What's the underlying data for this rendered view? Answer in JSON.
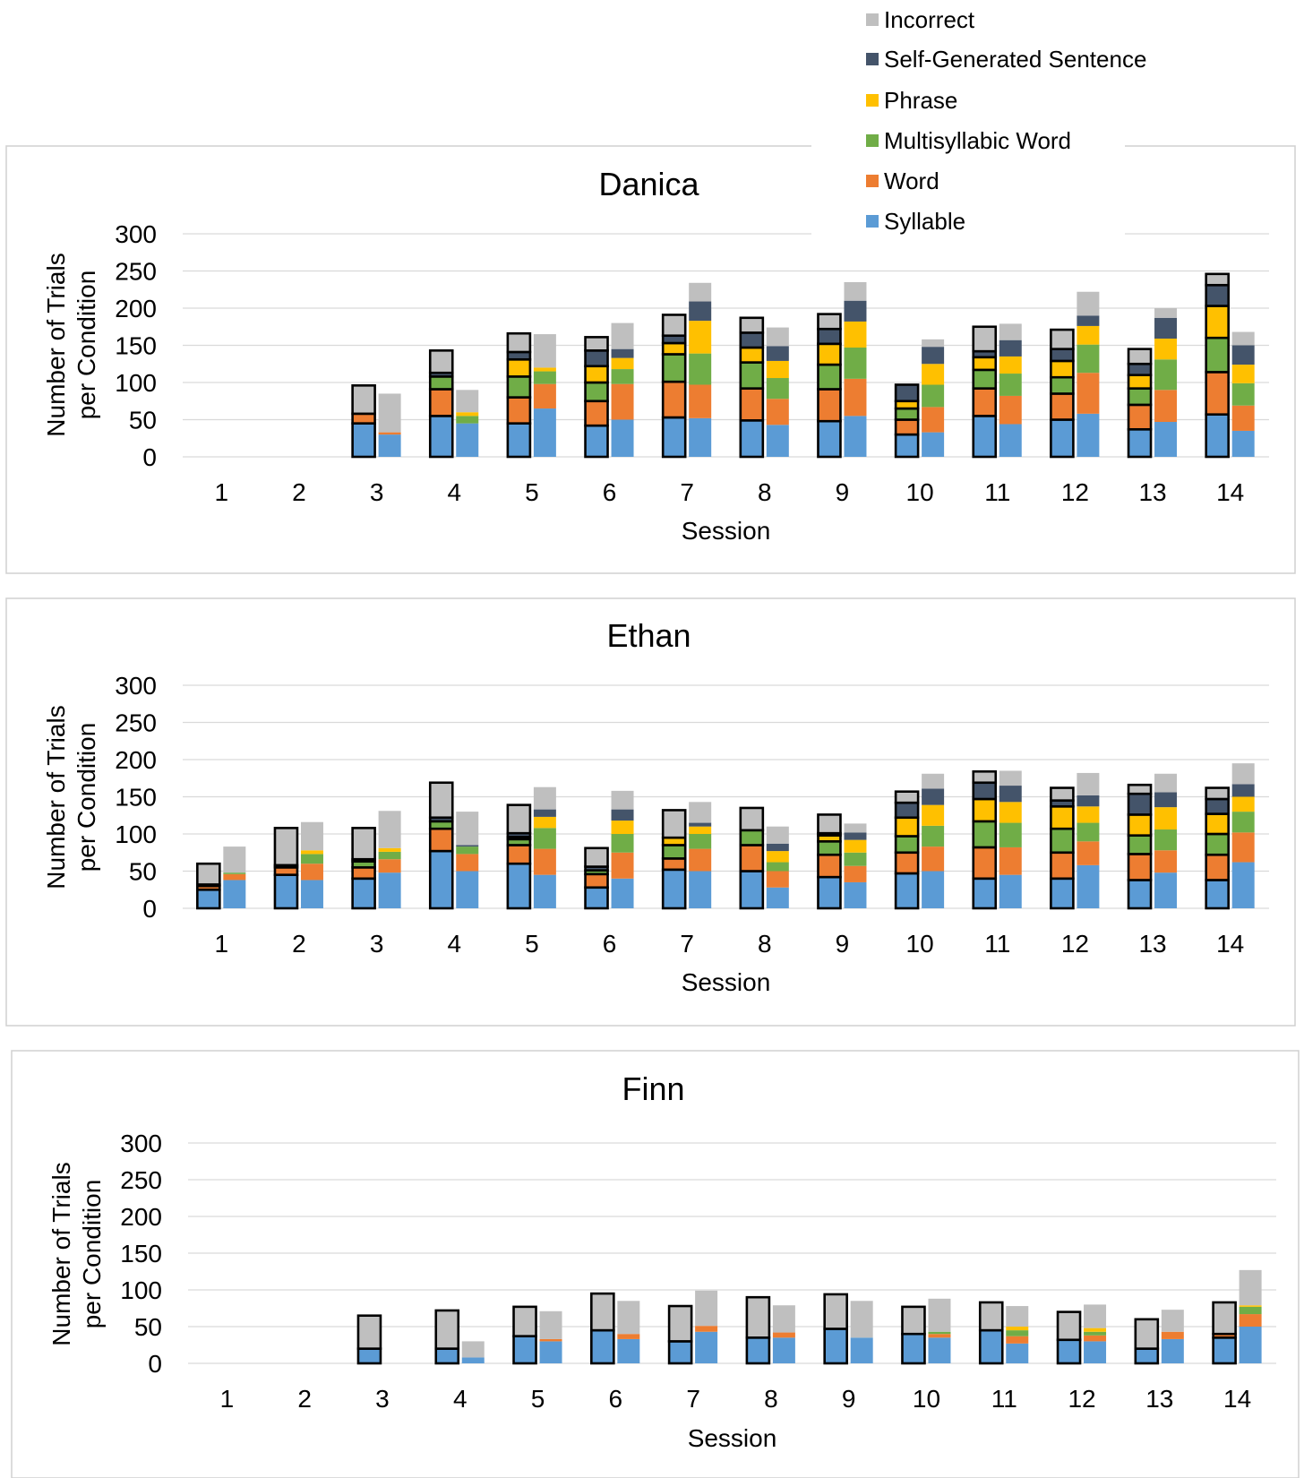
{
  "legend": [
    {
      "key": "incorrect",
      "label": "Incorrect",
      "color": "#bfbfbf"
    },
    {
      "key": "self",
      "label": "Self-Generated Sentence",
      "color": "#44546a"
    },
    {
      "key": "phrase",
      "label": "Phrase",
      "color": "#ffc000"
    },
    {
      "key": "multi",
      "label": "Multisyllabic Word",
      "color": "#70ad47"
    },
    {
      "key": "word",
      "label": "Word",
      "color": "#ed7d31"
    },
    {
      "key": "syllable",
      "label": "Syllable",
      "color": "#5b9bd5"
    }
  ],
  "chart_data": [
    {
      "type": "bar",
      "title": "Danica",
      "xlabel": "Session",
      "ylabel": [
        "Number of Trials",
        "per Condition"
      ],
      "ylim": [
        0,
        300
      ],
      "yticks": [
        0,
        50,
        100,
        150,
        200,
        250,
        300
      ],
      "grid": true,
      "categories": [
        "1",
        "2",
        "3",
        "4",
        "5",
        "6",
        "7",
        "8",
        "9",
        "10",
        "11",
        "12",
        "13",
        "14"
      ],
      "note": "Each session shows two stacked bars: the left bar outlined in black and the right bar unoutlined. Segment values are counts per category.",
      "series": [
        {
          "name": "Syllable",
          "outlined": [
            0,
            0,
            45,
            55,
            45,
            42,
            53,
            49,
            48,
            30,
            55,
            50,
            37,
            57
          ],
          "plain": [
            0,
            0,
            30,
            45,
            65,
            50,
            52,
            43,
            55,
            33,
            44,
            58,
            47,
            35
          ]
        },
        {
          "name": "Word",
          "outlined": [
            0,
            0,
            13,
            36,
            35,
            33,
            48,
            43,
            43,
            20,
            37,
            35,
            33,
            57
          ],
          "plain": [
            0,
            0,
            3,
            0,
            33,
            48,
            45,
            35,
            50,
            34,
            38,
            55,
            43,
            34
          ]
        },
        {
          "name": "Multisyllabic Word",
          "outlined": [
            0,
            0,
            0,
            17,
            28,
            25,
            37,
            35,
            33,
            15,
            25,
            22,
            22,
            46
          ],
          "plain": [
            0,
            0,
            0,
            10,
            17,
            20,
            42,
            28,
            42,
            30,
            30,
            38,
            41,
            30
          ]
        },
        {
          "name": "Phrase",
          "outlined": [
            0,
            0,
            0,
            0,
            23,
            22,
            15,
            20,
            28,
            10,
            17,
            22,
            18,
            43
          ],
          "plain": [
            0,
            0,
            0,
            5,
            5,
            15,
            44,
            23,
            35,
            28,
            23,
            25,
            28,
            25
          ]
        },
        {
          "name": "Self-Generated Sentence",
          "outlined": [
            0,
            0,
            0,
            5,
            10,
            21,
            10,
            20,
            20,
            22,
            8,
            16,
            15,
            28
          ],
          "plain": [
            0,
            0,
            0,
            0,
            0,
            12,
            26,
            20,
            28,
            23,
            22,
            14,
            28,
            26
          ]
        },
        {
          "name": "Incorrect",
          "outlined": [
            0,
            0,
            38,
            30,
            25,
            18,
            28,
            20,
            20,
            0,
            33,
            26,
            20,
            15
          ],
          "plain": [
            0,
            0,
            52,
            30,
            45,
            35,
            25,
            25,
            25,
            10,
            22,
            32,
            13,
            18
          ]
        }
      ]
    },
    {
      "type": "bar",
      "title": "Ethan",
      "xlabel": "Session",
      "ylabel": [
        "Number of Trials",
        "per Condition"
      ],
      "ylim": [
        0,
        300
      ],
      "yticks": [
        0,
        50,
        100,
        150,
        200,
        250,
        300
      ],
      "grid": true,
      "categories": [
        "1",
        "2",
        "3",
        "4",
        "5",
        "6",
        "7",
        "8",
        "9",
        "10",
        "11",
        "12",
        "13",
        "14"
      ],
      "series": [
        {
          "name": "Syllable",
          "outlined": [
            25,
            45,
            40,
            77,
            60,
            28,
            52,
            50,
            42,
            47,
            40,
            40,
            38,
            38
          ],
          "plain": [
            38,
            38,
            48,
            50,
            45,
            40,
            50,
            28,
            35,
            50,
            45,
            58,
            48,
            62
          ]
        },
        {
          "name": "Word",
          "outlined": [
            5,
            10,
            15,
            30,
            25,
            18,
            15,
            35,
            30,
            28,
            42,
            35,
            35,
            34
          ],
          "plain": [
            8,
            22,
            18,
            23,
            35,
            35,
            30,
            22,
            22,
            33,
            37,
            32,
            30,
            40
          ]
        },
        {
          "name": "Multisyllabic Word",
          "outlined": [
            0,
            0,
            8,
            10,
            8,
            5,
            18,
            20,
            18,
            22,
            35,
            32,
            25,
            28
          ],
          "plain": [
            2,
            13,
            10,
            10,
            28,
            25,
            20,
            12,
            18,
            28,
            33,
            25,
            28,
            28
          ]
        },
        {
          "name": "Phrase",
          "outlined": [
            0,
            0,
            0,
            0,
            3,
            0,
            10,
            0,
            8,
            25,
            30,
            30,
            28,
            27
          ],
          "plain": [
            0,
            5,
            5,
            0,
            15,
            18,
            10,
            15,
            17,
            28,
            28,
            22,
            30,
            20
          ]
        },
        {
          "name": "Self-Generated Sentence",
          "outlined": [
            2,
            3,
            3,
            5,
            5,
            5,
            0,
            0,
            3,
            20,
            22,
            8,
            28,
            20
          ],
          "plain": [
            0,
            0,
            0,
            2,
            10,
            15,
            5,
            10,
            10,
            22,
            22,
            15,
            20,
            17
          ]
        },
        {
          "name": "Incorrect",
          "outlined": [
            28,
            50,
            42,
            47,
            38,
            25,
            37,
            30,
            25,
            15,
            15,
            17,
            12,
            15
          ],
          "plain": [
            35,
            38,
            50,
            45,
            30,
            25,
            28,
            23,
            12,
            20,
            20,
            30,
            25,
            28
          ]
        }
      ]
    },
    {
      "type": "bar",
      "title": "Finn",
      "xlabel": "Session",
      "ylabel": [
        "Number of Trials",
        "per Condition"
      ],
      "ylim": [
        0,
        300
      ],
      "yticks": [
        0,
        50,
        100,
        150,
        200,
        250,
        300
      ],
      "grid": true,
      "categories": [
        "1",
        "2",
        "3",
        "4",
        "5",
        "6",
        "7",
        "8",
        "9",
        "10",
        "11",
        "12",
        "13",
        "14"
      ],
      "series": [
        {
          "name": "Syllable",
          "outlined": [
            0,
            0,
            20,
            20,
            37,
            45,
            30,
            35,
            47,
            40,
            45,
            32,
            20,
            35
          ],
          "plain": [
            0,
            0,
            0,
            8,
            30,
            33,
            43,
            35,
            35,
            35,
            27,
            30,
            33,
            50
          ]
        },
        {
          "name": "Word",
          "outlined": [
            0,
            0,
            0,
            0,
            0,
            0,
            0,
            0,
            0,
            0,
            0,
            0,
            0,
            5
          ],
          "plain": [
            0,
            0,
            0,
            0,
            3,
            7,
            8,
            7,
            0,
            5,
            10,
            8,
            10,
            17
          ]
        },
        {
          "name": "Multisyllabic Word",
          "outlined": [
            0,
            0,
            0,
            0,
            0,
            0,
            0,
            0,
            0,
            0,
            0,
            0,
            0,
            0
          ],
          "plain": [
            0,
            0,
            0,
            0,
            0,
            0,
            0,
            0,
            0,
            3,
            8,
            5,
            0,
            10
          ]
        },
        {
          "name": "Phrase",
          "outlined": [
            0,
            0,
            0,
            0,
            0,
            0,
            0,
            0,
            0,
            0,
            0,
            0,
            0,
            0
          ],
          "plain": [
            0,
            0,
            0,
            0,
            0,
            0,
            0,
            0,
            0,
            0,
            5,
            5,
            0,
            2
          ]
        },
        {
          "name": "Self-Generated Sentence",
          "outlined": [
            0,
            0,
            0,
            0,
            0,
            0,
            0,
            0,
            0,
            0,
            0,
            0,
            0,
            0
          ],
          "plain": [
            0,
            0,
            0,
            0,
            0,
            0,
            0,
            0,
            0,
            0,
            0,
            0,
            0,
            0
          ]
        },
        {
          "name": "Incorrect",
          "outlined": [
            0,
            0,
            45,
            52,
            40,
            50,
            48,
            55,
            47,
            37,
            38,
            38,
            40,
            43
          ],
          "plain": [
            0,
            0,
            0,
            22,
            38,
            45,
            48,
            37,
            50,
            45,
            28,
            32,
            30,
            48
          ]
        }
      ]
    }
  ]
}
